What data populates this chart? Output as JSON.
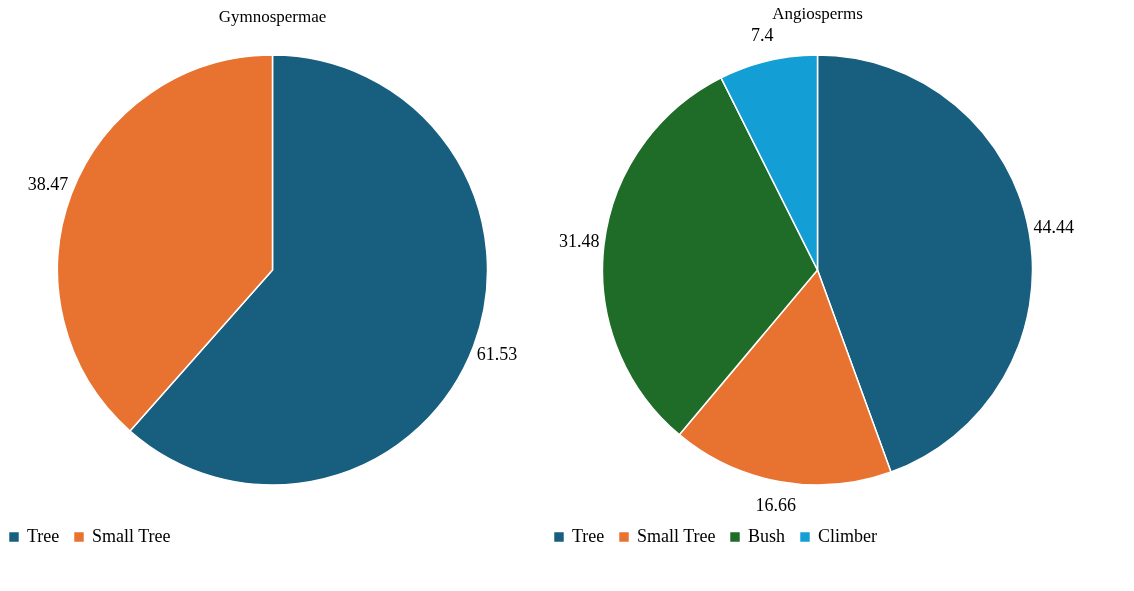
{
  "chart_data": [
    {
      "type": "pie",
      "title": "Gymnospermae",
      "categories": [
        "Tree",
        "Small Tree"
      ],
      "values": [
        61.53,
        38.47
      ],
      "colors": [
        "#175e7f",
        "#e87331"
      ],
      "data_labels": true,
      "legend": "bottom"
    },
    {
      "type": "pie",
      "title": "Angiosperms",
      "categories": [
        "Tree",
        "Small Tree",
        "Bush",
        "Climber"
      ],
      "values": [
        44.44,
        16.66,
        31.48,
        7.4
      ],
      "colors": [
        "#175e7f",
        "#e87331",
        "#1f6b28",
        "#139fd5"
      ],
      "data_labels": true,
      "legend": "bottom"
    }
  ]
}
